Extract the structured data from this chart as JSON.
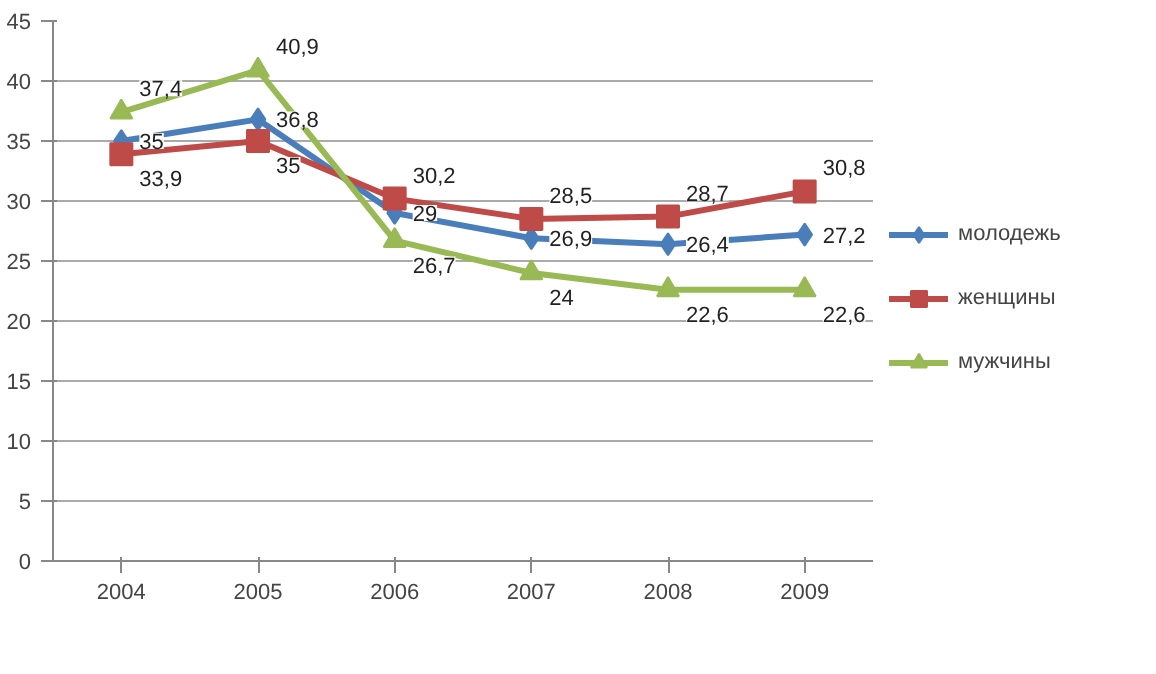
{
  "chart_data": {
    "type": "line",
    "categories": [
      "2004",
      "2005",
      "2006",
      "2007",
      "2008",
      "2009"
    ],
    "series": [
      {
        "name": "молодежь",
        "color": "#4a7ebb",
        "marker": "diamond",
        "values": [
          35,
          36.8,
          29,
          26.9,
          26.4,
          27.2
        ],
        "value_labels": [
          "35",
          "36,8",
          "29",
          "26,9",
          "26,4",
          "27,2"
        ]
      },
      {
        "name": "женщины",
        "color": "#be4b48",
        "marker": "square",
        "values": [
          33.9,
          35,
          30.2,
          28.5,
          28.7,
          30.8
        ],
        "value_labels": [
          "33,9",
          "35",
          "30,2",
          "28,5",
          "28,7",
          "30,8"
        ]
      },
      {
        "name": "мужчины",
        "color": "#98b954",
        "marker": "triangle",
        "values": [
          37.4,
          40.9,
          26.7,
          24,
          22.6,
          22.6
        ],
        "value_labels": [
          "37,4",
          "40,9",
          "26,7",
          "24",
          "22,6",
          "22,6"
        ]
      }
    ],
    "ylim": [
      0,
      45
    ],
    "yticks": [
      0,
      5,
      10,
      15,
      20,
      25,
      30,
      35,
      40,
      45
    ],
    "grid": "y",
    "legend": "right",
    "line_style": "solid"
  }
}
